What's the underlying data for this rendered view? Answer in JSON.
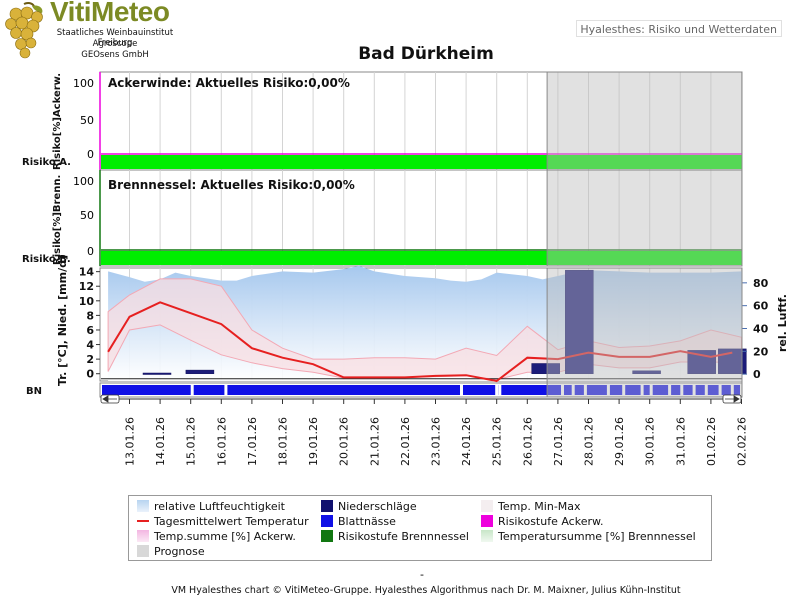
{
  "header": {
    "logo": {
      "name": "VitiMeteo",
      "lines": [
        "Staatliches Weinbauinstitut Freiburg",
        "Agroscope",
        "GEOsens GmbH"
      ],
      "icon": "grape-icon"
    },
    "tab_label": "Hyalesthes: Risiko und Wetterdaten",
    "title": "Bad Dürkheim"
  },
  "footer": {
    "dash": "-",
    "credit": "VM Hyalesthes chart © VitiMeteo-Gruppe. Hyalesthes Algorithmus nach Dr. M. Maixner, Julius Kühn-Institut"
  },
  "legend": [
    {
      "label": "relative Luftfeuchtigkeit",
      "color": "#b7d4f0",
      "kind": "gradient"
    },
    {
      "label": "Niederschläge",
      "color": "#10106e",
      "kind": "box"
    },
    {
      "label": "Temp. Min-Max",
      "color": "#f4eef0",
      "kind": "box"
    },
    {
      "label": "Tagesmittelwert Temperatur",
      "color": "#e62020",
      "kind": "line"
    },
    {
      "label": "Blattnässe",
      "color": "#1010e6",
      "kind": "box"
    },
    {
      "label": "Risikostufe Ackerw.",
      "color": "#ee00dd",
      "kind": "box"
    },
    {
      "label": "Temp.summe [%] Ackerw.",
      "color": "#f3b6e2",
      "kind": "gradient"
    },
    {
      "label": "Risikostufe Brennnessel",
      "color": "#117711",
      "kind": "box"
    },
    {
      "label": "Temperatursumme [%] Brennnessel",
      "color": "#c8e6c8",
      "kind": "gradient"
    },
    {
      "label": "Prognose",
      "color": "#d8d8d8",
      "kind": "box"
    }
  ],
  "chart_data": [
    {
      "type": "area",
      "panel": "ackerwinde",
      "annotation": "Ackerwinde: Aktuelles Risiko:0,00%",
      "ylabel": "Risiko[%]Ackerw.",
      "yticks": [
        100,
        50,
        0
      ],
      "ylim": [
        -8,
        110
      ],
      "risk_label": "Risiko A.",
      "risk_color": "#00ee00",
      "axis_color": "#ee00dd",
      "risk_percent": 0,
      "grid": true
    },
    {
      "type": "area",
      "panel": "brennnessel",
      "annotation": "Brennnessel: Aktuelles Risiko:0,00%",
      "ylabel": "Risiko[%]Brenn.",
      "yticks": [
        100,
        50,
        0
      ],
      "ylim": [
        -8,
        110
      ],
      "risk_label": "Risiko B.",
      "risk_color": "#00ee00",
      "axis_color": "#117711",
      "risk_percent": 0,
      "grid": true
    },
    {
      "type": "line",
      "panel": "weather",
      "ylabel": "Tr. [°C], Nied. [mm/d]",
      "y2label": "rel. Luftf.",
      "yticks": [
        14,
        12,
        10,
        8,
        6,
        4,
        2,
        0
      ],
      "y2ticks": [
        80,
        60,
        40,
        20,
        0
      ],
      "ylim": [
        -1,
        14.5
      ],
      "y2lim": [
        -6,
        93
      ],
      "bn_label": "BN",
      "x": [
        "13.01.26",
        "14.01.26",
        "15.01.26",
        "16.01.26",
        "17.01.26",
        "18.01.26",
        "19.01.26",
        "20.01.26",
        "21.01.26",
        "22.01.26",
        "23.01.26",
        "24.01.26",
        "25.01.26",
        "26.01.26",
        "27.01.26",
        "28.01.26",
        "29.01.26",
        "30.01.26",
        "31.01.26",
        "01.02.26",
        "02.02.26"
      ],
      "forecast_from": "27.01.26",
      "series": [
        {
          "key": "humidity",
          "values": [
            [
              12.3,
              90
            ],
            [
              13.0,
              85
            ],
            [
              13.5,
              81
            ],
            [
              14.0,
              83
            ],
            [
              14.5,
              89
            ],
            [
              15.0,
              86
            ],
            [
              16.0,
              82
            ],
            [
              16.5,
              82
            ],
            [
              17.0,
              86
            ],
            [
              17.5,
              88
            ],
            [
              18.0,
              90
            ],
            [
              19.0,
              89
            ],
            [
              20.0,
              92
            ],
            [
              20.5,
              95
            ],
            [
              21.0,
              90
            ],
            [
              22.0,
              86
            ],
            [
              23.0,
              84
            ],
            [
              23.5,
              82
            ],
            [
              24.0,
              81
            ],
            [
              24.5,
              83
            ],
            [
              25.0,
              89
            ],
            [
              26.0,
              86
            ],
            [
              26.5,
              83
            ],
            [
              27.0,
              86
            ],
            [
              27.5,
              89
            ],
            [
              28.0,
              91
            ],
            [
              29.0,
              90
            ],
            [
              30.0,
              89
            ],
            [
              31.0,
              89
            ],
            [
              32.0,
              89
            ],
            [
              33.0,
              90
            ],
            [
              34.0,
              89
            ],
            [
              34.5,
              89
            ]
          ]
        },
        {
          "key": "temp_max",
          "values": [
            [
              12.3,
              8.5
            ],
            [
              13.0,
              10.8
            ],
            [
              14.0,
              13.0
            ],
            [
              15.0,
              13.0
            ],
            [
              16.0,
              12.0
            ],
            [
              17.0,
              6.0
            ],
            [
              18.0,
              3.5
            ],
            [
              19.0,
              2.0
            ],
            [
              20.0,
              2.0
            ],
            [
              21.0,
              2.2
            ],
            [
              22.0,
              2.2
            ],
            [
              23.0,
              2.0
            ],
            [
              24.0,
              3.5
            ],
            [
              25.0,
              2.5
            ],
            [
              26.0,
              6.5
            ],
            [
              27.0,
              3.3
            ],
            [
              28.0,
              4.5
            ],
            [
              29.0,
              3.6
            ],
            [
              30.0,
              3.8
            ],
            [
              31.0,
              4.5
            ],
            [
              32.0,
              6.0
            ],
            [
              33.0,
              5.0
            ]
          ]
        },
        {
          "key": "temp_min",
          "values": [
            [
              12.3,
              0.3
            ],
            [
              13.0,
              6.0
            ],
            [
              14.0,
              6.7
            ],
            [
              15.0,
              4.6
            ],
            [
              16.0,
              2.6
            ],
            [
              17.0,
              1.5
            ],
            [
              18.0,
              0.7
            ],
            [
              19.0,
              0.2
            ],
            [
              20.0,
              -0.6
            ],
            [
              21.0,
              -0.5
            ],
            [
              22.0,
              -0.5
            ],
            [
              23.0,
              -0.4
            ],
            [
              24.0,
              -0.3
            ],
            [
              25.0,
              -0.8
            ],
            [
              26.0,
              0.2
            ],
            [
              27.0,
              0.2
            ],
            [
              28.0,
              1.3
            ],
            [
              29.0,
              0.8
            ],
            [
              30.0,
              0.8
            ],
            [
              31.0,
              1.6
            ],
            [
              32.0,
              1.6
            ],
            [
              33.0,
              1.5
            ]
          ]
        },
        {
          "key": "temp_mean",
          "values": [
            [
              12.3,
              3.0
            ],
            [
              13.0,
              7.8
            ],
            [
              14.0,
              9.8
            ],
            [
              15.0,
              8.3
            ],
            [
              16.0,
              6.8
            ],
            [
              17.0,
              3.5
            ],
            [
              18.0,
              2.2
            ],
            [
              19.0,
              1.3
            ],
            [
              20.0,
              -0.5
            ],
            [
              21.0,
              -0.5
            ],
            [
              22.0,
              -0.5
            ],
            [
              23.0,
              -0.3
            ],
            [
              24.0,
              -0.2
            ],
            [
              25.0,
              -1.0
            ],
            [
              26.0,
              2.2
            ],
            [
              27.0,
              2.0
            ],
            [
              28.0,
              2.9
            ],
            [
              29.0,
              2.3
            ],
            [
              30.0,
              2.3
            ],
            [
              31.0,
              3.1
            ],
            [
              32.0,
              2.3
            ],
            [
              32.7,
              2.9
            ]
          ]
        },
        {
          "key": "precip",
          "values": [
            [
              13.9,
              0.1
            ],
            [
              15.3,
              0.5
            ],
            [
              26.6,
              1.4
            ],
            [
              27.7,
              14.2
            ],
            [
              29.9,
              0.4
            ],
            [
              31.7,
              3.2
            ],
            [
              32.7,
              3.4
            ]
          ]
        }
      ],
      "leaf_wetness_gaps": [
        15.05,
        16.15,
        23.85,
        25.0,
        25.1,
        27.15,
        27.5,
        27.9,
        28.65,
        29.15,
        29.75,
        30.05,
        30.65,
        31.05,
        31.45,
        31.85,
        32.3,
        32.7,
        33.05
      ]
    }
  ]
}
